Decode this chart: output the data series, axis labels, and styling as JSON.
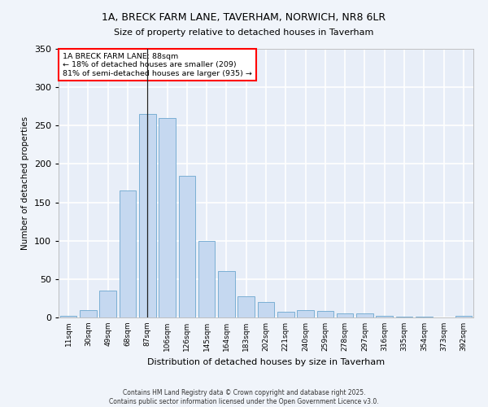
{
  "title": "1A, BRECK FARM LANE, TAVERHAM, NORWICH, NR8 6LR",
  "subtitle": "Size of property relative to detached houses in Taverham",
  "xlabel": "Distribution of detached houses by size in Taverham",
  "ylabel": "Number of detached properties",
  "bar_color": "#c5d8f0",
  "bar_edge_color": "#7bafd4",
  "background_color": "#e8eef8",
  "fig_background": "#f0f4fa",
  "grid_color": "#ffffff",
  "categories": [
    "11sqm",
    "30sqm",
    "49sqm",
    "68sqm",
    "87sqm",
    "106sqm",
    "126sqm",
    "145sqm",
    "164sqm",
    "183sqm",
    "202sqm",
    "221sqm",
    "240sqm",
    "259sqm",
    "278sqm",
    "297sqm",
    "316sqm",
    "335sqm",
    "354sqm",
    "373sqm",
    "392sqm"
  ],
  "values": [
    2,
    10,
    35,
    165,
    265,
    260,
    185,
    100,
    60,
    28,
    20,
    7,
    10,
    8,
    5,
    5,
    2,
    1,
    1,
    0,
    2
  ],
  "marker_index": 4,
  "marker_label": "1A BRECK FARM LANE: 88sqm",
  "annotation_line1": "← 18% of detached houses are smaller (209)",
  "annotation_line2": "81% of semi-detached houses are larger (935) →",
  "ylim": [
    0,
    350
  ],
  "yticks": [
    0,
    50,
    100,
    150,
    200,
    250,
    300,
    350
  ],
  "footer_line1": "Contains HM Land Registry data © Crown copyright and database right 2025.",
  "footer_line2": "Contains public sector information licensed under the Open Government Licence v3.0."
}
